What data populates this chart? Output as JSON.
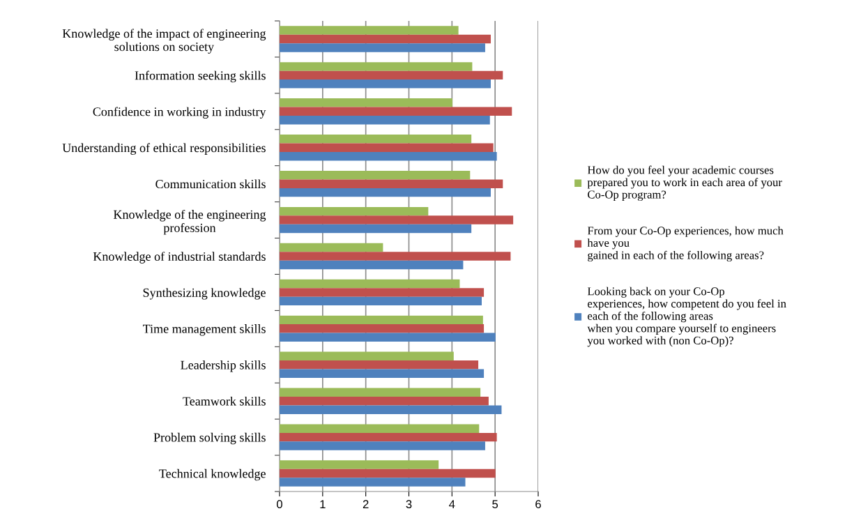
{
  "chart_data": {
    "type": "bar",
    "orientation": "horizontal",
    "categories": [
      "Knowledge of the impact of engineering\nsolutions on society",
      "Information seeking skills",
      "Confidence in working in industry",
      "Understanding of ethical responsibilities",
      "Communication skills",
      "Knowledge of the engineering\nprofession",
      "Knowledge of industrial standards",
      "Synthesizing knowledge",
      "Time management skills",
      "Leadership skills",
      "Teamwork skills",
      "Problem solving skills",
      "Technical knowledge"
    ],
    "series": [
      {
        "name": "How do you feel your academic courses\nprepared you to work in each area of your\nCo-Op program?",
        "color": "#9bbb59",
        "values": [
          4.15,
          4.47,
          4.01,
          4.45,
          4.42,
          3.45,
          2.4,
          4.18,
          4.72,
          4.04,
          4.66,
          4.63,
          3.69
        ]
      },
      {
        "name": "From your Co-Op experiences, how much\nhave you\ngained in each of the following areas?",
        "color": "#c0504d",
        "values": [
          4.9,
          5.18,
          5.39,
          4.96,
          5.18,
          5.42,
          5.36,
          4.74,
          4.74,
          4.61,
          4.85,
          5.04,
          5.01
        ]
      },
      {
        "name": "Looking back on your Co-Op\nexperiences, how competent do you feel in\neach of the following areas\nwhen you compare yourself to engineers\nyou worked with (non Co-Op)?",
        "color": "#4f81bd",
        "values": [
          4.77,
          4.9,
          4.88,
          5.04,
          4.9,
          4.45,
          4.26,
          4.69,
          5.01,
          4.74,
          5.15,
          4.77,
          4.31
        ]
      }
    ],
    "xlim": [
      0,
      6
    ],
    "xticks": [
      0,
      1,
      2,
      3,
      4,
      5,
      6
    ],
    "grid": "x",
    "legend": "right"
  }
}
